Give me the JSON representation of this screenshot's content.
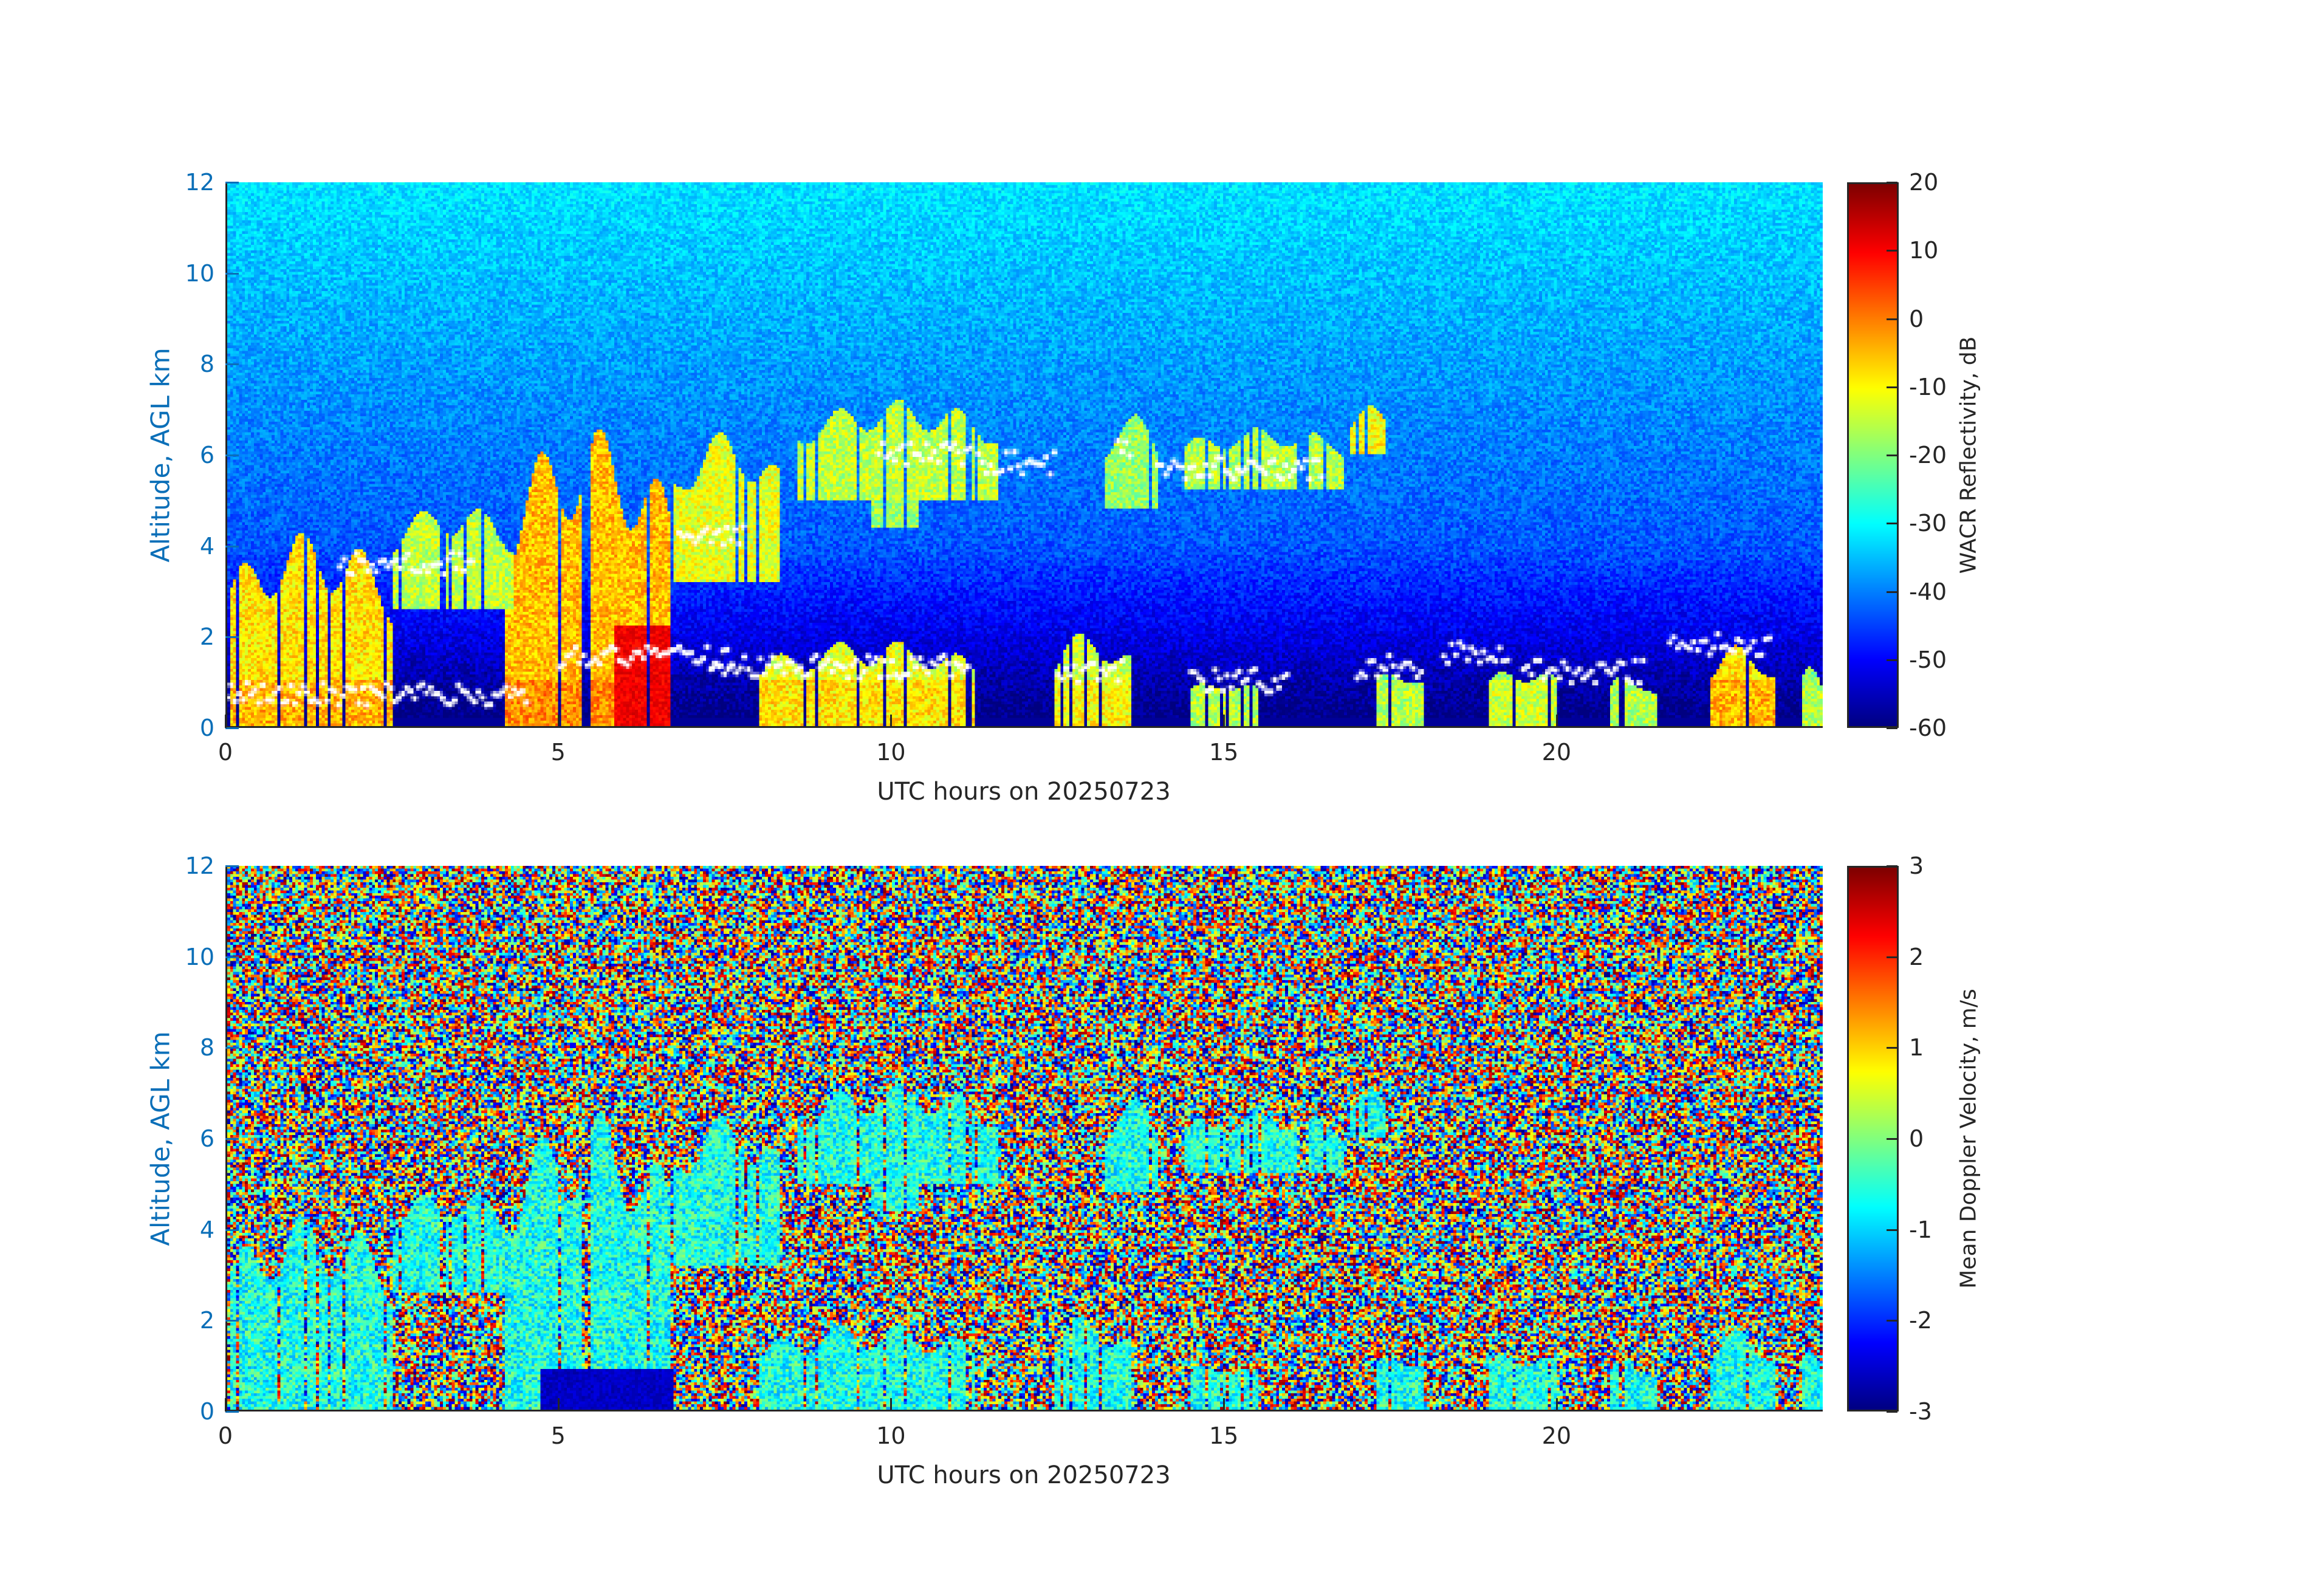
{
  "chart_data": [
    {
      "type": "heatmap",
      "xlabel": "UTC hours on 20250723",
      "ylabel": "Altitude, AGL km",
      "xlim": [
        0,
        24
      ],
      "ylim": [
        0,
        12
      ],
      "xticks": [
        "0",
        "5",
        "10",
        "15",
        "20"
      ],
      "yticks": [
        "0",
        "2",
        "4",
        "6",
        "8",
        "10",
        "12"
      ],
      "colorbar": {
        "label": "WACR Reflectivity, dB",
        "range": [
          -60,
          20
        ],
        "ticks": [
          "-60",
          "-50",
          "-40",
          "-30",
          "-20",
          "-10",
          "0",
          "10",
          "20"
        ],
        "colormap": "jet"
      },
      "background": "noise ~ -30 dB aloft decreasing to ~ -55 dB near surface",
      "cloud_regions": [
        {
          "t": [
            0,
            2.5
          ],
          "z": [
            0,
            4.3
          ],
          "dB": -8
        },
        {
          "t": [
            2.5,
            4.3
          ],
          "z": [
            2.6,
            4.9
          ],
          "dB": -15
        },
        {
          "t": [
            4.2,
            6.7
          ],
          "z": [
            0,
            6.6
          ],
          "dB": -5
        },
        {
          "t": [
            6.7,
            8.3
          ],
          "z": [
            3.2,
            6.5
          ],
          "dB": -12
        },
        {
          "t": [
            8.6,
            11.6
          ],
          "z": [
            5.0,
            7.2
          ],
          "dB": -15
        },
        {
          "t": [
            9.7,
            10.4
          ],
          "z": [
            4.4,
            5.6
          ],
          "dB": -18
        },
        {
          "t": [
            13.2,
            14.0
          ],
          "z": [
            4.8,
            6.9
          ],
          "dB": -18
        },
        {
          "t": [
            14.4,
            16.8
          ],
          "z": [
            5.2,
            6.6
          ],
          "dB": -16
        },
        {
          "t": [
            16.9,
            17.4
          ],
          "z": [
            6.0,
            7.1
          ],
          "dB": -10
        },
        {
          "t": [
            8.0,
            11.3
          ],
          "z": [
            0,
            1.9
          ],
          "dB": -12
        },
        {
          "t": [
            12.4,
            13.6
          ],
          "z": [
            0,
            2.1
          ],
          "dB": -14
        },
        {
          "t": [
            14.5,
            15.5
          ],
          "z": [
            0,
            1.1
          ],
          "dB": -20
        },
        {
          "t": [
            17.3,
            18.0
          ],
          "z": [
            0,
            1.4
          ],
          "dB": -20
        },
        {
          "t": [
            19.0,
            20.0
          ],
          "z": [
            0,
            1.4
          ],
          "dB": -18
        },
        {
          "t": [
            20.8,
            21.5
          ],
          "z": [
            0,
            1.2
          ],
          "dB": -20
        },
        {
          "t": [
            22.3,
            23.3
          ],
          "z": [
            0,
            1.8
          ],
          "dB": -8
        },
        {
          "t": [
            23.7,
            24
          ],
          "z": [
            0,
            1.6
          ],
          "dB": -20
        }
      ],
      "ceilometer_base_points": [
        {
          "t": [
            0,
            4.5
          ],
          "z": 0.7
        },
        {
          "t": [
            1.7,
            3.7
          ],
          "z": 3.6
        },
        {
          "t": [
            5.0,
            7.6
          ],
          "z": 1.5
        },
        {
          "t": [
            6.8,
            7.8
          ],
          "z": 4.2
        },
        {
          "t": [
            7.3,
            11.2
          ],
          "z": 1.3
        },
        {
          "t": [
            9.8,
            11.2
          ],
          "z": 6.0
        },
        {
          "t": [
            11.3,
            12.5
          ],
          "z": 5.8
        },
        {
          "t": [
            12.5,
            13.5
          ],
          "z": 1.2
        },
        {
          "t": [
            13.4,
            13.6
          ],
          "z": 6.2
        },
        {
          "t": [
            14.0,
            16.5
          ],
          "z": 5.7
        },
        {
          "t": [
            14.5,
            16.0
          ],
          "z": 1.0
        },
        {
          "t": [
            17.0,
            18.0
          ],
          "z": 1.3
        },
        {
          "t": [
            18.3,
            19.3
          ],
          "z": 1.6
        },
        {
          "t": [
            19.5,
            21.3
          ],
          "z": 1.2
        },
        {
          "t": [
            21.7,
            23.2
          ],
          "z": 1.8
        }
      ]
    },
    {
      "type": "heatmap",
      "xlabel": "UTC hours on 20250723",
      "ylabel": "Altitude, AGL km",
      "xlim": [
        0,
        24
      ],
      "ylim": [
        0,
        12
      ],
      "xticks": [
        "0",
        "5",
        "10",
        "15",
        "20"
      ],
      "yticks": [
        "0",
        "2",
        "4",
        "6",
        "8",
        "10",
        "12"
      ],
      "colorbar": {
        "label": "Mean Doppler Velocity, m/s",
        "range": [
          -3,
          3
        ],
        "ticks": [
          "-3",
          "-2",
          "-1",
          "0",
          "1",
          "2",
          "3"
        ],
        "colormap": "jet"
      },
      "background": "random noise -3 to 3 m/s outside cloud",
      "cloud_velocity_m_s": -0.6,
      "surface_rain_region": {
        "t": [
          4.7,
          6.7
        ],
        "z": [
          0,
          0.9
        ],
        "velocity": -2.8
      }
    }
  ]
}
